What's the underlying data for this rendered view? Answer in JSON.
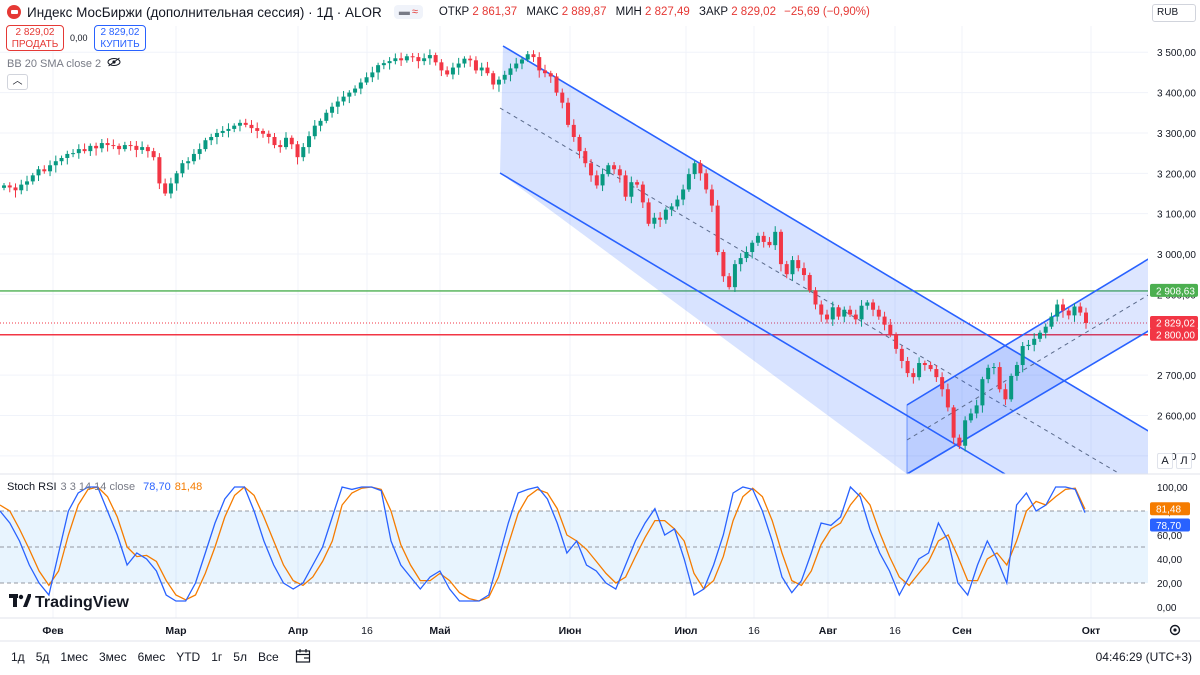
{
  "header": {
    "title": "Индекс МосБиржи (дополнительная сессия) · 1Д · ALOR",
    "open_label": "ОТКР",
    "open": "2 861,37",
    "high_label": "МАКС",
    "high": "2 889,87",
    "low_label": "МИН",
    "low": "2 827,49",
    "close_label": "ЗАКР",
    "close": "2 829,02",
    "change": "−25,69 (−0,90%)",
    "wave_icon": "≈"
  },
  "trade": {
    "sell_price": "2 829,02",
    "sell_label": "ПРОДАТЬ",
    "spread": "0,00",
    "buy_price": "2 829,02",
    "buy_label": "КУПИТЬ"
  },
  "indicator_bb": "BB 20 SMA close 2",
  "currency": "RUB",
  "scale_buttons": {
    "auto": "A",
    "log": "Л"
  },
  "stoch": {
    "name": "Stoch RSI",
    "params": "3 3 14 14 close",
    "k_value": "78,70",
    "d_value": "81,48"
  },
  "logo_text": "TradingView",
  "timeframes": [
    "1д",
    "5д",
    "1мес",
    "3мес",
    "6мес",
    "YTD",
    "1г",
    "5л",
    "Все"
  ],
  "clock": "04:46:29 (UTC+3)",
  "colors": {
    "up": "#089981",
    "down": "#f23645",
    "channel": "#2962ff",
    "k": "#2962ff",
    "d": "#f57c00",
    "support_green": "#4caf50",
    "support_red": "#f23645"
  },
  "chart_data": {
    "type": "candlestick",
    "x_axis": {
      "labels": [
        "Фев",
        "Мар",
        "Апр",
        "16",
        "Май",
        "Июн",
        "Июл",
        "16",
        "Авг",
        "16",
        "Сен",
        "Окт"
      ]
    },
    "y_axis": {
      "ticks": [
        2500,
        2600,
        2700,
        2800,
        2900,
        3000,
        3100,
        3200,
        3300,
        3400,
        3500
      ],
      "tick_labels": [
        "2 500,00",
        "2 600,00",
        "2 700,00",
        "2 800,00",
        "2 900,00",
        "3 000,00",
        "3 100,00",
        "3 200,00",
        "3 300,00",
        "3 400,00",
        "3 500,00"
      ],
      "range": [
        2455,
        3565
      ]
    },
    "horizontal_levels": [
      {
        "value": 2908.63,
        "label": "2 908,63",
        "color": "#4caf50"
      },
      {
        "value": 2800.0,
        "label": "2 800,00",
        "color": "#f23645"
      },
      {
        "value": 2829.02,
        "label": "2 829,02",
        "color": "#f23645",
        "style": "dotted"
      }
    ],
    "closes": [
      3170,
      3165,
      3158,
      3172,
      3180,
      3195,
      3210,
      3205,
      3220,
      3230,
      3238,
      3248,
      3250,
      3260,
      3255,
      3268,
      3262,
      3275,
      3270,
      3268,
      3260,
      3270,
      3268,
      3258,
      3265,
      3255,
      3240,
      3175,
      3150,
      3175,
      3200,
      3225,
      3230,
      3248,
      3260,
      3282,
      3290,
      3300,
      3305,
      3310,
      3318,
      3325,
      3320,
      3312,
      3305,
      3298,
      3290,
      3270,
      3265,
      3288,
      3272,
      3240,
      3265,
      3292,
      3318,
      3330,
      3350,
      3365,
      3378,
      3390,
      3400,
      3410,
      3425,
      3438,
      3450,
      3468,
      3473,
      3478,
      3485,
      3480,
      3490,
      3488,
      3478,
      3485,
      3493,
      3475,
      3455,
      3445,
      3462,
      3472,
      3484,
      3480,
      3455,
      3462,
      3448,
      3420,
      3432,
      3444,
      3460,
      3472,
      3482,
      3495,
      3488,
      3455,
      3448,
      3440,
      3400,
      3375,
      3320,
      3290,
      3255,
      3225,
      3195,
      3170,
      3198,
      3220,
      3210,
      3195,
      3142,
      3178,
      3172,
      3128,
      3075,
      3090,
      3085,
      3110,
      3118,
      3135,
      3160,
      3198,
      3225,
      3200,
      3160,
      3120,
      3005,
      2945,
      2918,
      2975,
      2990,
      3005,
      3028,
      3045,
      3030,
      3022,
      3055,
      2975,
      2950,
      2985,
      2965,
      2948,
      2910,
      2875,
      2850,
      2838,
      2868,
      2845,
      2862,
      2850,
      2838,
      2872,
      2880,
      2862,
      2845,
      2825,
      2800,
      2765,
      2735,
      2705,
      2695,
      2730,
      2725,
      2715,
      2695,
      2665,
      2620,
      2545,
      2525,
      2588,
      2605,
      2625,
      2690,
      2718,
      2720,
      2665,
      2640,
      2698,
      2725,
      2772,
      2775,
      2790,
      2805,
      2820,
      2845,
      2875,
      2860,
      2848,
      2870,
      2855,
      2829.02
    ],
    "stoch_rsi": {
      "k_label": "78,70",
      "d_label": "81,48",
      "y_ticks": [
        0,
        20,
        40,
        60,
        80,
        100
      ],
      "y_tick_labels": [
        "0,00",
        "20,00",
        "40,00",
        "60,00",
        "80,00",
        "100,00"
      ],
      "k": [
        80,
        70,
        55,
        35,
        20,
        10,
        45,
        80,
        95,
        100,
        100,
        80,
        60,
        35,
        45,
        40,
        30,
        10,
        5,
        5,
        20,
        45,
        70,
        90,
        100,
        100,
        80,
        55,
        35,
        20,
        15,
        20,
        35,
        50,
        75,
        100,
        98,
        100,
        100,
        97,
        55,
        35,
        25,
        15,
        25,
        30,
        15,
        5,
        5,
        5,
        10,
        40,
        70,
        95,
        98,
        100,
        90,
        70,
        45,
        55,
        35,
        30,
        20,
        15,
        35,
        55,
        70,
        82,
        60,
        65,
        40,
        10,
        15,
        35,
        60,
        95,
        100,
        98,
        80,
        55,
        25,
        12,
        22,
        45,
        70,
        68,
        75,
        100,
        92,
        65,
        45,
        30,
        10,
        25,
        40,
        45,
        70,
        55,
        20,
        10,
        35,
        55,
        40,
        20,
        85,
        95,
        80,
        85,
        100,
        100,
        98,
        78.7
      ],
      "d": [
        85,
        80,
        65,
        48,
        30,
        18,
        30,
        60,
        85,
        98,
        100,
        92,
        75,
        50,
        42,
        43,
        38,
        22,
        10,
        6,
        10,
        28,
        50,
        75,
        93,
        100,
        93,
        75,
        55,
        35,
        22,
        18,
        25,
        38,
        55,
        85,
        95,
        99,
        100,
        98,
        80,
        52,
        35,
        22,
        22,
        28,
        22,
        12,
        7,
        5,
        8,
        25,
        52,
        78,
        92,
        98,
        95,
        82,
        60,
        55,
        48,
        38,
        28,
        20,
        25,
        42,
        58,
        72,
        72,
        65,
        55,
        28,
        15,
        22,
        42,
        72,
        92,
        99,
        92,
        72,
        45,
        22,
        18,
        30,
        52,
        65,
        70,
        85,
        95,
        85,
        62,
        42,
        25,
        18,
        28,
        38,
        55,
        60,
        42,
        22,
        22,
        40,
        45,
        35,
        55,
        80,
        88,
        85,
        92,
        98,
        99,
        81.48
      ]
    }
  }
}
